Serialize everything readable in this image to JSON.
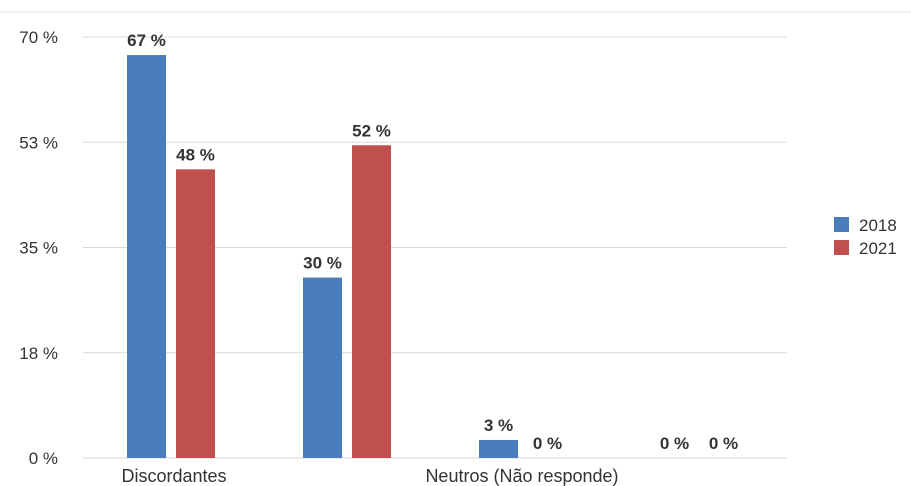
{
  "chart_data": {
    "type": "bar",
    "categories": [
      "Discordantes",
      "Neutros (Não responde)",
      "",
      ""
    ],
    "category_labels_visible": [
      "Discordantes",
      "",
      "Neutros (Não responde)",
      ""
    ],
    "series": [
      {
        "name": "2018",
        "color": "#4a7ebb",
        "values": [
          67,
          30,
          3,
          0
        ]
      },
      {
        "name": "2021",
        "color": "#c0504d",
        "values": [
          48,
          52,
          0,
          0
        ]
      }
    ],
    "data_labels": [
      [
        "67 %",
        "30 %",
        "3 %",
        "0 %"
      ],
      [
        "48 %",
        "52 %",
        "0 %",
        "0 %"
      ]
    ],
    "ytick_values": [
      0,
      17.5,
      35,
      52.5,
      70
    ],
    "ytick_labels": [
      "0 %",
      "18 %",
      "35 %",
      "53 %",
      "70 %"
    ],
    "ylim": [
      0,
      70
    ],
    "title": "",
    "xlabel": "",
    "ylabel": "",
    "grid": true,
    "legend_position": "right"
  }
}
